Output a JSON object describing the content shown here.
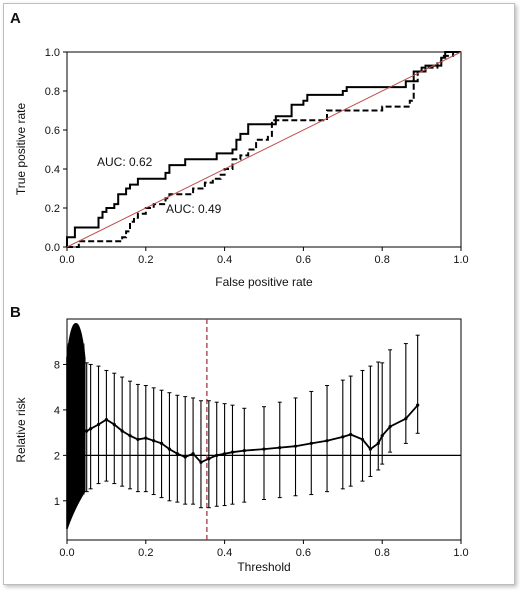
{
  "chart_data": [
    {
      "panel_label": "A",
      "type": "line",
      "xlabel": "False positive rate",
      "ylabel": "True positive rate",
      "xlim": [
        0,
        1
      ],
      "ylim": [
        0,
        1
      ],
      "xticks": [
        "0.0",
        "0.2",
        "0.4",
        "0.6",
        "0.8",
        "1.0"
      ],
      "yticks": [
        "0.0",
        "0.2",
        "0.4",
        "0.6",
        "0.8",
        "1.0"
      ],
      "grid": false,
      "series": [
        {
          "annotation": "AUC: 0.62",
          "style": "solid",
          "color": "#000000",
          "points": [
            [
              0,
              0
            ],
            [
              0,
              0.05
            ],
            [
              0.02,
              0.05
            ],
            [
              0.02,
              0.1
            ],
            [
              0.08,
              0.1
            ],
            [
              0.08,
              0.15
            ],
            [
              0.09,
              0.15
            ],
            [
              0.09,
              0.18
            ],
            [
              0.1,
              0.18
            ],
            [
              0.1,
              0.2
            ],
            [
              0.12,
              0.2
            ],
            [
              0.12,
              0.22
            ],
            [
              0.13,
              0.22
            ],
            [
              0.13,
              0.27
            ],
            [
              0.15,
              0.27
            ],
            [
              0.15,
              0.3
            ],
            [
              0.16,
              0.3
            ],
            [
              0.16,
              0.32
            ],
            [
              0.18,
              0.32
            ],
            [
              0.18,
              0.35
            ],
            [
              0.25,
              0.35
            ],
            [
              0.25,
              0.38
            ],
            [
              0.26,
              0.38
            ],
            [
              0.26,
              0.42
            ],
            [
              0.3,
              0.42
            ],
            [
              0.3,
              0.45
            ],
            [
              0.38,
              0.45
            ],
            [
              0.38,
              0.48
            ],
            [
              0.42,
              0.48
            ],
            [
              0.42,
              0.5
            ],
            [
              0.43,
              0.5
            ],
            [
              0.43,
              0.55
            ],
            [
              0.44,
              0.55
            ],
            [
              0.44,
              0.58
            ],
            [
              0.46,
              0.58
            ],
            [
              0.46,
              0.63
            ],
            [
              0.53,
              0.63
            ],
            [
              0.53,
              0.67
            ],
            [
              0.57,
              0.67
            ],
            [
              0.57,
              0.73
            ],
            [
              0.6,
              0.73
            ],
            [
              0.6,
              0.75
            ],
            [
              0.61,
              0.75
            ],
            [
              0.61,
              0.78
            ],
            [
              0.7,
              0.78
            ],
            [
              0.7,
              0.8
            ],
            [
              0.71,
              0.8
            ],
            [
              0.71,
              0.82
            ],
            [
              0.86,
              0.82
            ],
            [
              0.86,
              0.85
            ],
            [
              0.88,
              0.85
            ],
            [
              0.88,
              0.9
            ],
            [
              0.91,
              0.9
            ],
            [
              0.91,
              0.93
            ],
            [
              0.95,
              0.93
            ],
            [
              0.95,
              0.97
            ],
            [
              0.96,
              0.97
            ],
            [
              0.96,
              1
            ],
            [
              1,
              1
            ]
          ]
        },
        {
          "annotation": "AUC: 0.49",
          "style": "dashed",
          "color": "#000000",
          "points": [
            [
              0,
              0
            ],
            [
              0.03,
              0
            ],
            [
              0.03,
              0.03
            ],
            [
              0.14,
              0.03
            ],
            [
              0.14,
              0.05
            ],
            [
              0.15,
              0.05
            ],
            [
              0.15,
              0.08
            ],
            [
              0.16,
              0.08
            ],
            [
              0.16,
              0.13
            ],
            [
              0.17,
              0.13
            ],
            [
              0.17,
              0.15
            ],
            [
              0.18,
              0.15
            ],
            [
              0.18,
              0.17
            ],
            [
              0.2,
              0.17
            ],
            [
              0.2,
              0.2
            ],
            [
              0.22,
              0.2
            ],
            [
              0.22,
              0.22
            ],
            [
              0.25,
              0.22
            ],
            [
              0.25,
              0.25
            ],
            [
              0.26,
              0.25
            ],
            [
              0.26,
              0.27
            ],
            [
              0.32,
              0.27
            ],
            [
              0.32,
              0.3
            ],
            [
              0.35,
              0.3
            ],
            [
              0.35,
              0.33
            ],
            [
              0.37,
              0.33
            ],
            [
              0.37,
              0.35
            ],
            [
              0.39,
              0.35
            ],
            [
              0.39,
              0.37
            ],
            [
              0.4,
              0.37
            ],
            [
              0.4,
              0.4
            ],
            [
              0.42,
              0.4
            ],
            [
              0.42,
              0.45
            ],
            [
              0.44,
              0.45
            ],
            [
              0.44,
              0.47
            ],
            [
              0.46,
              0.47
            ],
            [
              0.46,
              0.5
            ],
            [
              0.48,
              0.5
            ],
            [
              0.48,
              0.55
            ],
            [
              0.51,
              0.55
            ],
            [
              0.51,
              0.57
            ],
            [
              0.52,
              0.57
            ],
            [
              0.52,
              0.65
            ],
            [
              0.66,
              0.65
            ],
            [
              0.66,
              0.7
            ],
            [
              0.8,
              0.7
            ],
            [
              0.8,
              0.72
            ],
            [
              0.87,
              0.72
            ],
            [
              0.87,
              0.75
            ],
            [
              0.88,
              0.75
            ],
            [
              0.88,
              0.85
            ],
            [
              0.89,
              0.85
            ],
            [
              0.89,
              0.9
            ],
            [
              0.9,
              0.9
            ],
            [
              0.9,
              0.92
            ],
            [
              0.94,
              0.92
            ],
            [
              0.94,
              0.95
            ],
            [
              0.95,
              0.95
            ],
            [
              0.95,
              0.98
            ],
            [
              0.98,
              0.98
            ],
            [
              0.98,
              1
            ],
            [
              1,
              1
            ]
          ]
        },
        {
          "style": "diagonal",
          "color": "#c0504d",
          "points": [
            [
              0,
              0
            ],
            [
              1,
              1
            ]
          ]
        }
      ]
    },
    {
      "panel_label": "B",
      "type": "line",
      "xlabel": "Threshold",
      "ylabel": "Relative risk",
      "xlim": [
        0,
        1
      ],
      "y_scale": "log",
      "ylim": [
        0.55,
        16
      ],
      "xticks": [
        "0.0",
        "0.2",
        "0.4",
        "0.6",
        "0.8",
        "1.0"
      ],
      "yticks": [
        "1",
        "2",
        "4",
        "8"
      ],
      "reference_line": 2,
      "reference_line_color": "#000000",
      "vline": 0.355,
      "vline_color": "#a52a2a",
      "vline_style": "dashed",
      "series": [
        {
          "style": "solid-with-error-bars",
          "color": "#000000",
          "points": [
            {
              "x": 0.05,
              "y": 2.9,
              "lo": 1.15,
              "hi": 8.2
            },
            {
              "x": 0.06,
              "y": 3.0,
              "lo": 1.2,
              "hi": 8.0
            },
            {
              "x": 0.08,
              "y": 3.2,
              "lo": 1.3,
              "hi": 7.8
            },
            {
              "x": 0.1,
              "y": 3.45,
              "lo": 1.35,
              "hi": 7.3
            },
            {
              "x": 0.12,
              "y": 3.2,
              "lo": 1.3,
              "hi": 7.0
            },
            {
              "x": 0.14,
              "y": 2.9,
              "lo": 1.25,
              "hi": 6.6
            },
            {
              "x": 0.16,
              "y": 2.7,
              "lo": 1.2,
              "hi": 6.2
            },
            {
              "x": 0.18,
              "y": 2.55,
              "lo": 1.15,
              "hi": 5.9
            },
            {
              "x": 0.2,
              "y": 2.6,
              "lo": 1.15,
              "hi": 5.8
            },
            {
              "x": 0.22,
              "y": 2.5,
              "lo": 1.1,
              "hi": 5.6
            },
            {
              "x": 0.24,
              "y": 2.4,
              "lo": 1.05,
              "hi": 5.4
            },
            {
              "x": 0.26,
              "y": 2.2,
              "lo": 1.0,
              "hi": 5.2
            },
            {
              "x": 0.28,
              "y": 2.05,
              "lo": 0.98,
              "hi": 5.0
            },
            {
              "x": 0.3,
              "y": 1.95,
              "lo": 0.95,
              "hi": 4.9
            },
            {
              "x": 0.32,
              "y": 2.05,
              "lo": 0.95,
              "hi": 4.8
            },
            {
              "x": 0.34,
              "y": 1.8,
              "lo": 0.9,
              "hi": 4.6
            },
            {
              "x": 0.36,
              "y": 1.9,
              "lo": 0.9,
              "hi": 4.6
            },
            {
              "x": 0.38,
              "y": 2.0,
              "lo": 0.92,
              "hi": 4.5
            },
            {
              "x": 0.4,
              "y": 2.05,
              "lo": 0.93,
              "hi": 4.4
            },
            {
              "x": 0.42,
              "y": 2.1,
              "lo": 0.95,
              "hi": 4.3
            },
            {
              "x": 0.45,
              "y": 2.15,
              "lo": 0.98,
              "hi": 4.1
            },
            {
              "x": 0.5,
              "y": 2.2,
              "lo": 1.02,
              "hi": 4.2
            },
            {
              "x": 0.54,
              "y": 2.25,
              "lo": 1.05,
              "hi": 4.5
            },
            {
              "x": 0.58,
              "y": 2.3,
              "lo": 1.08,
              "hi": 4.8
            },
            {
              "x": 0.62,
              "y": 2.4,
              "lo": 1.1,
              "hi": 5.3
            },
            {
              "x": 0.66,
              "y": 2.5,
              "lo": 1.15,
              "hi": 5.8
            },
            {
              "x": 0.7,
              "y": 2.65,
              "lo": 1.2,
              "hi": 6.3
            },
            {
              "x": 0.72,
              "y": 2.75,
              "lo": 1.25,
              "hi": 6.7
            },
            {
              "x": 0.75,
              "y": 2.55,
              "lo": 1.35,
              "hi": 7.3
            },
            {
              "x": 0.77,
              "y": 2.2,
              "lo": 1.45,
              "hi": 7.8
            },
            {
              "x": 0.79,
              "y": 2.4,
              "lo": 1.6,
              "hi": 8.3
            },
            {
              "x": 0.8,
              "y": 2.7,
              "lo": 1.75,
              "hi": 8.2
            },
            {
              "x": 0.82,
              "y": 3.1,
              "lo": 2.1,
              "hi": 10.0
            },
            {
              "x": 0.86,
              "y": 3.5,
              "lo": 2.4,
              "hi": 11.0
            },
            {
              "x": 0.89,
              "y": 4.3,
              "lo": 2.8,
              "hi": 12.5
            }
          ]
        }
      ]
    }
  ]
}
